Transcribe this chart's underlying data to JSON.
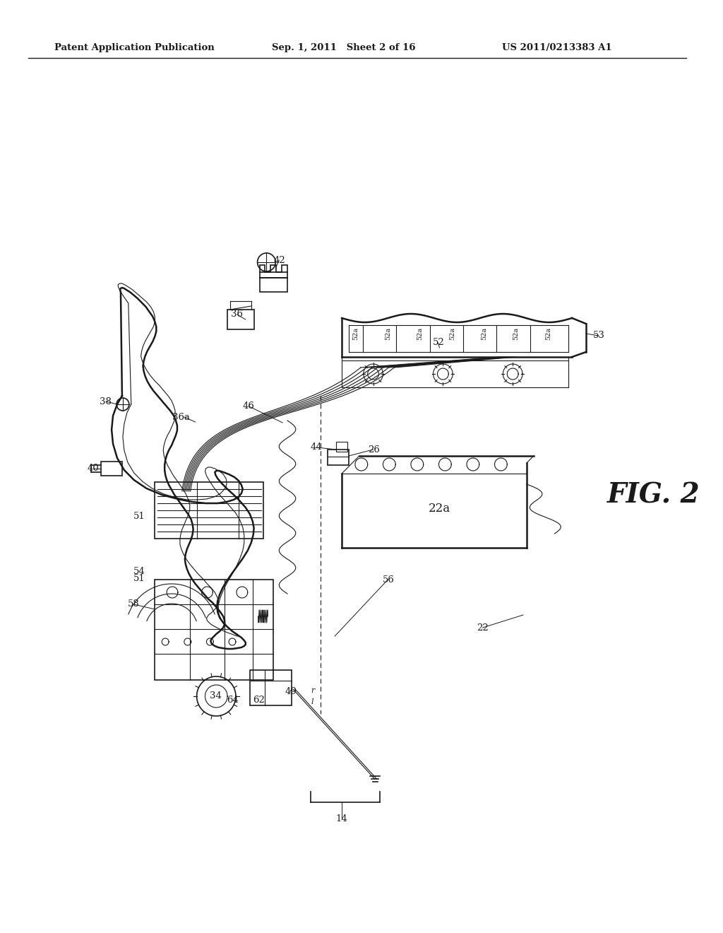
{
  "header_left": "Patent Application Publication",
  "header_mid": "Sep. 1, 2011   Sheet 2 of 16",
  "header_right": "US 2011/0213383 A1",
  "fig_label": "FIG. 2",
  "bg_color": "#ffffff",
  "line_color": "#1a1a1a",
  "gray_light": "#cccccc",
  "gray_mid": "#888888"
}
